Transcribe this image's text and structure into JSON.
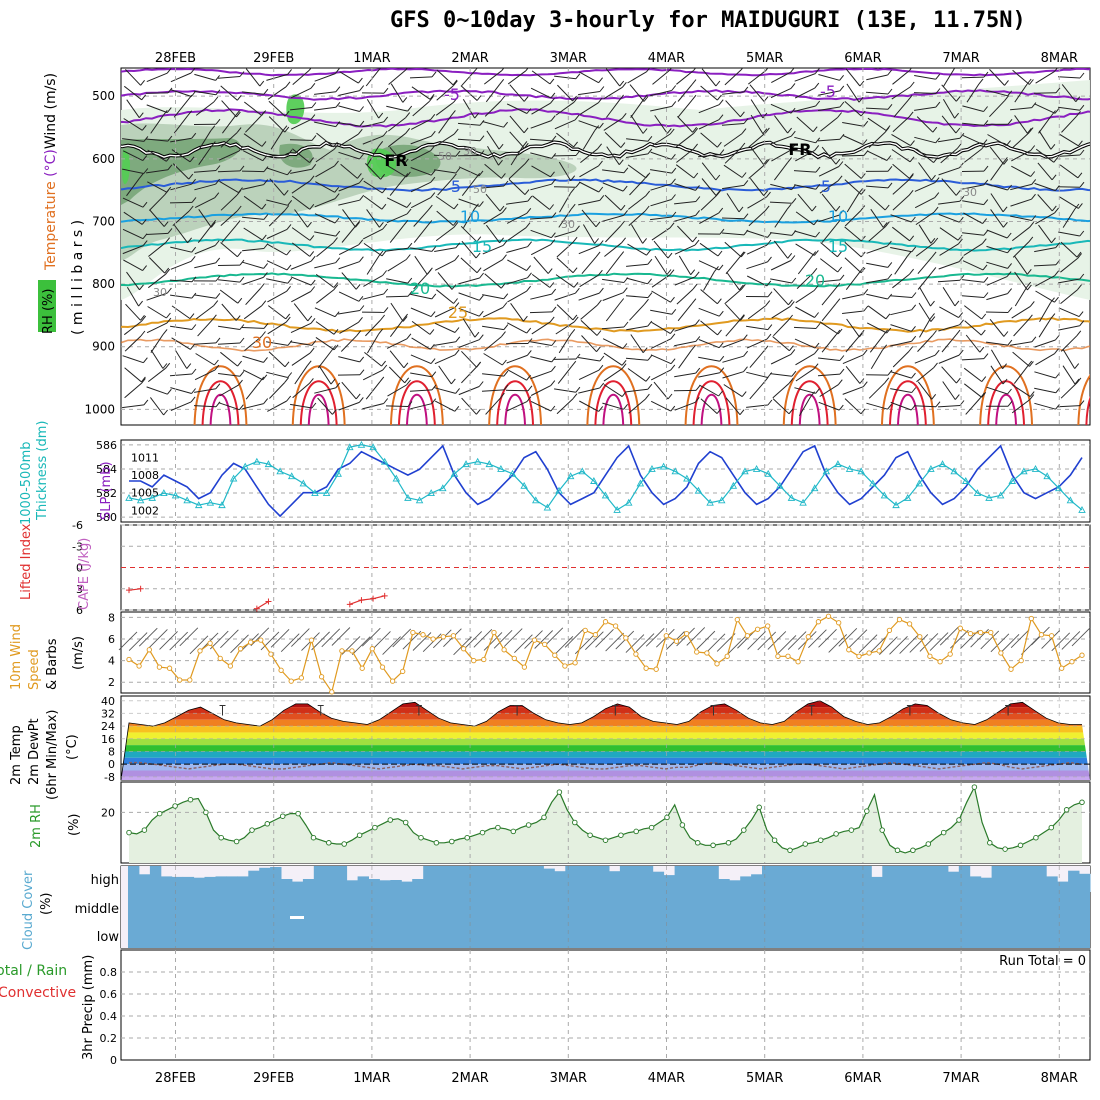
{
  "title": "GFS 0~10day 3-hourly for MAIDUGURI (13E, 11.75N)",
  "dates": [
    "28FEB",
    "29FEB",
    "1MAR",
    "2MAR",
    "3MAR",
    "4MAR",
    "5MAR",
    "6MAR",
    "7MAR",
    "8MAR"
  ],
  "colors": {
    "purple": "#8a1fc0",
    "blue": "#2a5cd8",
    "lightblue": "#1aa0e0",
    "cyan": "#19b8b8",
    "teal": "#19b890",
    "orange": "#e09a20",
    "darkorange": "#e07020",
    "red": "#e02030",
    "magenta": "#c01080",
    "rh_light": "#e6f2e6",
    "rh_mid": "#b8d0b8",
    "rh_dark": "#7aa87a",
    "rh_green": "#55cc55",
    "cloud": "#6aaad4",
    "cloud_bg": "#f4f0f8",
    "grid": "#aaaaaa"
  },
  "chart_data": [
    {
      "type": "contour",
      "name": "upper_air",
      "ylabel_parts": [
        "Wind",
        "(m/s)",
        "Temperature",
        "(°C)",
        "RH",
        "(%)"
      ],
      "axis_label": "( m i l l i b a r s )",
      "yticks": [
        "500",
        "600",
        "700",
        "800",
        "900",
        "1000"
      ],
      "contour_labels": [
        "-5",
        "-5",
        "FR",
        "FR",
        "50",
        "30",
        "50",
        "30",
        "30",
        "30",
        "5",
        "5",
        "10",
        "10",
        "15",
        "15",
        "20",
        "20",
        "25",
        "30"
      ]
    },
    {
      "type": "line",
      "name": "slp_thickness",
      "left_ticks": [
        "586",
        "584",
        "582",
        "580"
      ],
      "right_ticks": [
        "1011",
        "1008",
        "1005",
        "1002"
      ],
      "label_thickness": [
        "1000-500mb",
        "Thickness (dm)"
      ],
      "label_slp": "SLP (mb)",
      "slp_ylim": [
        1000,
        1014
      ],
      "thk_ylim": [
        579.6,
        586.4
      ],
      "slp": [
        1007,
        1007,
        1006,
        1008,
        1007,
        1006,
        1004,
        1005,
        1008,
        1010,
        1009,
        1006,
        1003,
        1001,
        1003,
        1005,
        1005,
        1006,
        1009,
        1010,
        1012,
        1011,
        1010,
        1009,
        1008,
        1009,
        1011,
        1013,
        1008,
        1005,
        1003,
        1004,
        1006,
        1008,
        1011,
        1012,
        1009,
        1005,
        1003,
        1004,
        1005,
        1008,
        1011,
        1013,
        1008,
        1005,
        1003,
        1004,
        1006,
        1010,
        1012,
        1011,
        1008,
        1005,
        1003,
        1004,
        1006,
        1009,
        1012,
        1013,
        1008,
        1005,
        1003,
        1004,
        1006,
        1008,
        1011,
        1012,
        1008,
        1005,
        1003,
        1004,
        1006,
        1009,
        1011,
        1013,
        1008,
        1005,
        1004,
        1005,
        1006,
        1008,
        1011
      ],
      "thickness": [
        581.6,
        581.4,
        581.6,
        582.0,
        581.8,
        581.4,
        581.0,
        581.2,
        581.0,
        583.2,
        584.2,
        584.6,
        584.4,
        583.8,
        583.4,
        582.8,
        582.0,
        582.0,
        583.6,
        585.8,
        586.0,
        585.8,
        584.6,
        583.2,
        581.6,
        581.4,
        582.0,
        582.4,
        583.6,
        584.4,
        584.6,
        584.4,
        584.0,
        583.6,
        582.6,
        581.4,
        580.8,
        582.2,
        583.4,
        583.8,
        583.0,
        581.8,
        580.6,
        581.2,
        582.8,
        584.0,
        584.2,
        583.8,
        583.2,
        582.2,
        581.2,
        581.4,
        582.6,
        583.8,
        584.0,
        583.6,
        582.6,
        581.6,
        581.2,
        582.4,
        583.8,
        584.4,
        584.0,
        583.8,
        582.8,
        581.8,
        581.0,
        581.6,
        582.8,
        584.0,
        584.4,
        583.8,
        583.0,
        582.0,
        581.6,
        581.8,
        583.0,
        583.8,
        584.0,
        583.4,
        582.4,
        581.4,
        580.6
      ]
    },
    {
      "type": "line",
      "name": "lifted_index_cape",
      "ticks": [
        "-6",
        "-3",
        "0",
        "3",
        "6"
      ],
      "label_li": "Lifted Index",
      "label_cape": "CAPE (J/kg)",
      "ylim": [
        -6,
        6
      ],
      "segments": [
        {
          "x": [
            0,
            1
          ],
          "y": [
            3.2,
            3.0
          ]
        },
        {
          "x": [
            11,
            12
          ],
          "y": [
            5.8,
            4.8
          ]
        },
        {
          "x": [
            19,
            20,
            21,
            22
          ],
          "y": [
            5.2,
            4.6,
            4.4,
            4.0
          ]
        }
      ]
    },
    {
      "type": "line",
      "name": "wind10m",
      "ticks": [
        "8",
        "6",
        "4",
        "2"
      ],
      "label": [
        "10m Wind",
        "Speed",
        "& Barbs"
      ],
      "unit": "(m/s)",
      "ylim": [
        1,
        8.5
      ],
      "values": [
        4.1,
        3.5,
        5.0,
        3.4,
        3.3,
        2.2,
        2.2,
        4.9,
        5.6,
        4.2,
        3.5,
        5.1,
        5.7,
        5.9,
        4.6,
        3.1,
        2.1,
        2.4,
        5.9,
        2.5,
        1.1,
        4.9,
        4.9,
        3.3,
        5.1,
        3.4,
        2.1,
        3.0,
        6.6,
        6.4,
        6.0,
        6.2,
        6.3,
        5.1,
        4.0,
        4.1,
        6.6,
        5.0,
        4.2,
        3.4,
        5.9,
        5.5,
        4.5,
        3.5,
        3.8,
        6.8,
        6.4,
        7.6,
        7.2,
        6.1,
        4.6,
        3.3,
        3.2,
        6.3,
        5.8,
        6.5,
        4.8,
        4.7,
        3.7,
        4.4,
        7.8,
        6.3,
        6.9,
        7.2,
        4.4,
        4.4,
        3.9,
        6.2,
        7.6,
        8.1,
        7.5,
        5.0,
        4.4,
        4.7,
        4.9,
        6.8,
        7.8,
        7.4,
        6.2,
        4.4,
        3.9,
        4.6,
        7.0,
        6.5,
        6.6,
        6.6,
        4.7,
        3.2,
        4.0,
        7.9,
        6.4,
        6.3,
        3.3,
        3.9,
        4.5
      ]
    },
    {
      "type": "area",
      "name": "temp_dewpoint",
      "ticks": [
        "40",
        "32",
        "24",
        "16",
        "8",
        "0",
        "-8"
      ],
      "label": [
        "2m Temp",
        "2m DewPt",
        "(6hr Min/Max)",
        "(°C)"
      ],
      "ylim": [
        -10,
        43
      ],
      "temp": [
        26,
        25,
        24,
        26,
        30,
        34,
        36,
        32,
        28,
        26,
        25,
        24,
        28,
        34,
        38,
        38,
        33,
        29,
        27,
        26,
        25,
        28,
        33,
        38,
        39,
        34,
        29,
        26,
        25,
        24,
        27,
        33,
        37,
        37,
        32,
        28,
        26,
        25,
        26,
        30,
        35,
        38,
        36,
        30,
        27,
        26,
        25,
        27,
        33,
        37,
        38,
        34,
        29,
        26,
        25,
        27,
        33,
        38,
        40,
        36,
        30,
        27,
        25,
        26,
        30,
        35,
        38,
        37,
        32,
        28,
        26,
        25,
        28,
        33,
        38,
        39,
        34,
        29,
        26,
        25,
        25
      ],
      "dew": [
        1,
        1,
        0,
        -1,
        -2,
        -3,
        -2,
        -1,
        0,
        0,
        -1,
        -2,
        -3,
        -3,
        -2,
        -1,
        0,
        1,
        0,
        -1,
        -2,
        -3,
        -2,
        -1,
        0,
        -1,
        -1,
        -2,
        -3,
        -2,
        -1,
        -1,
        -2,
        -3,
        -2,
        -1,
        0,
        -1,
        -2,
        -3,
        -3,
        -2,
        -1,
        -1,
        -2,
        -3,
        -2,
        -2,
        0,
        1,
        0,
        -1,
        -2,
        -3,
        -2,
        -1,
        0,
        0,
        -1,
        -2,
        -3,
        -2,
        -1,
        0,
        1,
        0,
        -1,
        -2,
        -3,
        -2,
        -1,
        0,
        1,
        0,
        -2,
        -3,
        -2,
        -1,
        0,
        1,
        0
      ]
    },
    {
      "type": "area",
      "name": "rh2m",
      "tick": "20",
      "label": "2m RH",
      "unit": "(%)",
      "ylim": [
        0,
        32
      ],
      "values": [
        12,
        11.5,
        13,
        17,
        19.5,
        21,
        22.5,
        24,
        25,
        25.5,
        20,
        13,
        10,
        9,
        8.5,
        10,
        13,
        14,
        15.5,
        17,
        18.5,
        19.5,
        19.5,
        15,
        10,
        9,
        8,
        7.5,
        7.5,
        9,
        11,
        12.5,
        14,
        15.5,
        17,
        17.5,
        16,
        12,
        10,
        9,
        8,
        8,
        8.5,
        9.5,
        10,
        11,
        12,
        13.5,
        14,
        13.5,
        12.5,
        14,
        15,
        16,
        18,
        24,
        28,
        21,
        16,
        13,
        11,
        10,
        9,
        10,
        11,
        12,
        12.5,
        13.5,
        14,
        16,
        18,
        23,
        15,
        10,
        8,
        7,
        7,
        7.5,
        8,
        9.5,
        13,
        17,
        22,
        13,
        9,
        6,
        5,
        6,
        7.5,
        8,
        9,
        10,
        11.5,
        12.5,
        13,
        14,
        20.5,
        27,
        13,
        7,
        5,
        4,
        5,
        6,
        7.5,
        10,
        12,
        14,
        17,
        24,
        30,
        16,
        8,
        6,
        5.5,
        6,
        7,
        8.5,
        10,
        12,
        14,
        17,
        21,
        23,
        24
      ]
    },
    {
      "type": "area",
      "name": "cloud_cover",
      "label": "Cloud Cover",
      "unit": "(%)",
      "levels": [
        "high",
        "middle",
        "low"
      ],
      "high": [
        100,
        68,
        100,
        60,
        58,
        58,
        55,
        58,
        60,
        60,
        60,
        82,
        93,
        96,
        50,
        40,
        50,
        100,
        100,
        100,
        45,
        60,
        50,
        45,
        46,
        40,
        50,
        100,
        100,
        100,
        100,
        100,
        100,
        100,
        100,
        100,
        100,
        100,
        90,
        80,
        100,
        100,
        100,
        100,
        80,
        100,
        100,
        100,
        78,
        65,
        100,
        100,
        100,
        100,
        50,
        45,
        60,
        68,
        100,
        100,
        100,
        100,
        100,
        100,
        100,
        100,
        100,
        100,
        58,
        100,
        100,
        100,
        100,
        100,
        100,
        78,
        100,
        60,
        55,
        100,
        100,
        100,
        100,
        100,
        60,
        40,
        82,
        70
      ]
    },
    {
      "type": "bar",
      "name": "precip3h",
      "ticks": [
        "0.8",
        "0.6",
        "0.4",
        "0.2",
        "0"
      ],
      "label_total": "Total / Rain",
      "label_conv": "Convective",
      "unit": "3hr Precip (mm)",
      "run_total": "Run Total = 0",
      "ylim": [
        0,
        1
      ],
      "values": []
    }
  ]
}
